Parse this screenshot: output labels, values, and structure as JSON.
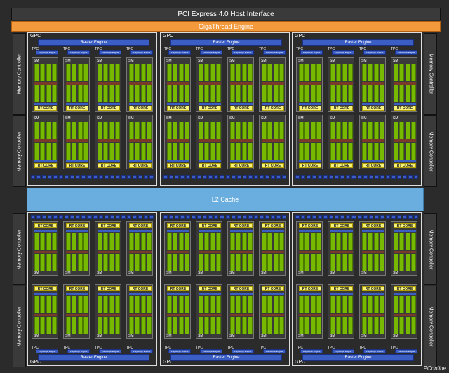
{
  "pcie_label": "PCI Express 4.0 Host Interface",
  "gigathread_label": "GigaThread Engine",
  "l2_label": "L2 Cache",
  "memory_controller_label": "Memory Controller",
  "gpc_label": "GPC",
  "raster_label": "Raster Engine",
  "tpc_label": "TPC",
  "polymorph_label": "PolyMorph Engine",
  "sm_label": "SM",
  "rt_core_label": "RT CORE",
  "watermark": "PConline",
  "colors": {
    "background": "#2b2b2b",
    "gigathread": "#f39a3c",
    "l2_cache": "#6aaedf",
    "cuda_core": "#76b900",
    "rt_core": "#f5f07a",
    "raster": "#3b5ec4"
  }
}
